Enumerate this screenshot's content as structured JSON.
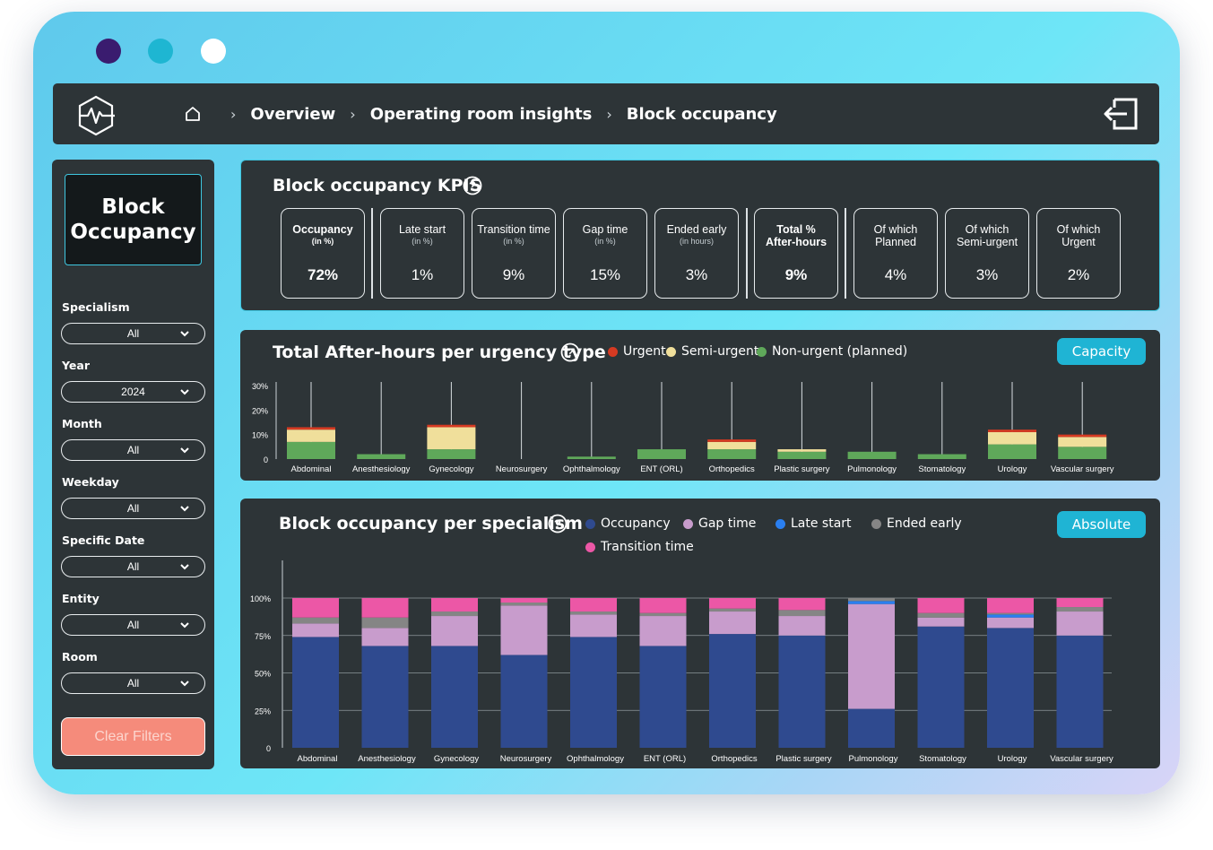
{
  "header": {
    "crumbs": [
      "Overview",
      "Operating room insights",
      "Block occupancy"
    ]
  },
  "sidebar": {
    "title": "Block Occupancy",
    "filters": [
      {
        "label": "Specialism",
        "value": "All"
      },
      {
        "label": "Year",
        "value": "2024"
      },
      {
        "label": "Month",
        "value": "All"
      },
      {
        "label": "Weekday",
        "value": "All"
      },
      {
        "label": "Specific Date",
        "value": "All"
      },
      {
        "label": "Entity",
        "value": "All"
      },
      {
        "label": "Room",
        "value": "All"
      }
    ],
    "clear_label": "Clear Filters"
  },
  "kpi_panel": {
    "title": "Block occupancy KPIS",
    "kpis": [
      {
        "title": "Occupancy",
        "sub": "(in %)",
        "value": "72%",
        "bold": true
      },
      {
        "title": "Late start",
        "sub": "(in %)",
        "value": "1%",
        "bold": false
      },
      {
        "title": "Transition time",
        "sub": "(in %)",
        "value": "9%",
        "bold": false
      },
      {
        "title": "Gap time",
        "sub": "(in %)",
        "value": "15%",
        "bold": false
      },
      {
        "title": "Ended early",
        "sub": "(in hours)",
        "value": "3%",
        "bold": false
      },
      {
        "title": "Total %",
        "sub": "After-hours",
        "value": "9%",
        "bold": true
      },
      {
        "title": "Of which",
        "sub": "Planned",
        "value": "4%",
        "bold": false
      },
      {
        "title": "Of which",
        "sub": "Semi-urgent",
        "value": "3%",
        "bold": false
      },
      {
        "title": "Of which",
        "sub": "Urgent",
        "value": "2%",
        "bold": false
      }
    ]
  },
  "after_hours_panel": {
    "title": "Total After-hours per urgency type",
    "toggle_label": "Capacity"
  },
  "occupancy_panel": {
    "title": "Block occupancy per specialism",
    "toggle_label": "Absolute"
  },
  "colors": {
    "urgent": "#d63a22",
    "semi_urgent": "#f0df9b",
    "non_urgent": "#5fa85a",
    "occupancy": "#2f4a8f",
    "gap": "#c89ccc",
    "late": "#2a7ff0",
    "ended": "#858585",
    "transition": "#ec57a6"
  },
  "chart_data": [
    {
      "type": "bar",
      "stacked": true,
      "categories": [
        "Abdominal",
        "Anesthesiology",
        "Gynecology",
        "Neurosurgery",
        "Ophthalmology",
        "ENT (ORL)",
        "Orthopedics",
        "Plastic surgery",
        "Pulmonology",
        "Stomatology",
        "Urology",
        "Vascular surgery"
      ],
      "series": [
        {
          "name": "Non-urgent (planned)",
          "values": [
            7,
            2,
            4,
            0,
            1,
            4,
            4,
            3,
            3,
            2,
            6,
            5
          ]
        },
        {
          "name": "Semi-urgent",
          "values": [
            5,
            0,
            9,
            0,
            0,
            0,
            3,
            1,
            0,
            0,
            5,
            4
          ]
        },
        {
          "name": "Urgent",
          "values": [
            1,
            0,
            1,
            0,
            0,
            0,
            1,
            0,
            0,
            0,
            1,
            1
          ]
        }
      ],
      "yticks": [
        "0",
        "10%",
        "20%",
        "30%"
      ],
      "ylim": [
        0,
        30
      ],
      "legend": "top"
    },
    {
      "type": "bar",
      "stacked": true,
      "categories": [
        "Abdominal",
        "Anesthesiology",
        "Gynecology",
        "Neurosurgery",
        "Ophthalmology",
        "ENT (ORL)",
        "Orthopedics",
        "Plastic surgery",
        "Pulmonology",
        "Stomatology",
        "Urology",
        "Vascular surgery"
      ],
      "series": [
        {
          "name": "Occupancy",
          "values": [
            74,
            68,
            68,
            62,
            74,
            68,
            76,
            75,
            26,
            81,
            80,
            75
          ]
        },
        {
          "name": "Gap time",
          "values": [
            9,
            12,
            20,
            33,
            15,
            20,
            15,
            13,
            70,
            6,
            7,
            16
          ]
        },
        {
          "name": "Late start",
          "values": [
            0,
            0,
            0,
            0,
            0,
            0,
            0,
            0,
            2,
            0,
            2,
            0
          ]
        },
        {
          "name": "Ended early",
          "values": [
            4,
            7,
            3,
            2,
            2,
            2,
            2,
            4,
            2,
            3,
            1,
            3
          ]
        },
        {
          "name": "Transition time",
          "values": [
            13,
            13,
            9,
            3,
            9,
            10,
            7,
            8,
            0,
            10,
            10,
            6
          ]
        }
      ],
      "yticks": [
        "0",
        "25%",
        "50%",
        "75%",
        "100%"
      ],
      "ylim": [
        0,
        100
      ],
      "legend": "top"
    }
  ]
}
